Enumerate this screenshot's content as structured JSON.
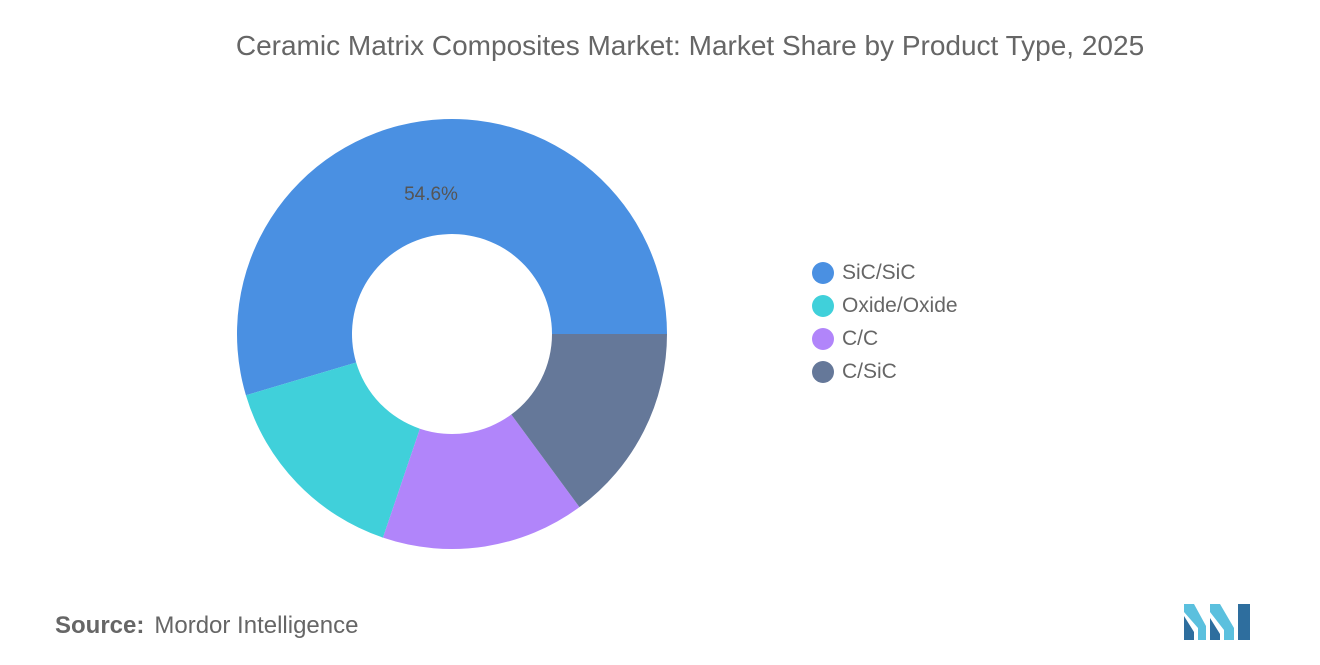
{
  "title": "Ceramic Matrix Composites Market: Market Share by Product Type, 2025",
  "source_label": "Source:",
  "source_value": "Mordor Intelligence",
  "chart_data": {
    "type": "pie",
    "style": "donut",
    "title": "Ceramic Matrix Composites Market: Market Share by Product Type, 2025",
    "categories": [
      "SiC/SiC",
      "Oxide/Oxide",
      "C/C",
      "C/SiC"
    ],
    "values": [
      54.6,
      15.2,
      15.3,
      14.9
    ],
    "colors": [
      "#4A90E2",
      "#40D0DA",
      "#B185FA",
      "#657899"
    ],
    "data_labels": [
      "54.6%",
      "",
      "",
      ""
    ],
    "legend_placement": "right"
  },
  "logo": {
    "icon": "mordor-intelligence-logo",
    "colors": [
      "#5BC0DE",
      "#2E6E9E"
    ]
  }
}
